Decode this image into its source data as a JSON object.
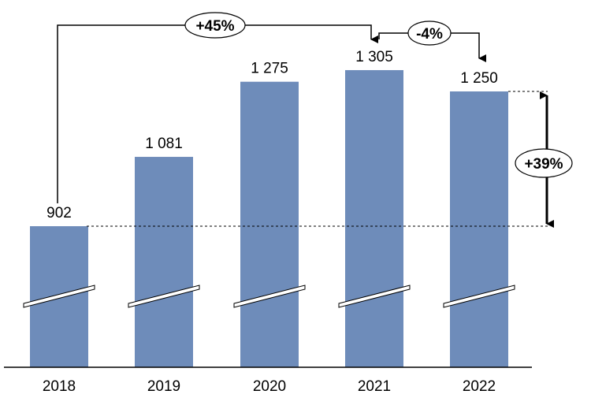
{
  "chart_data": {
    "type": "bar",
    "categories": [
      "2018",
      "2019",
      "2020",
      "2021",
      "2022"
    ],
    "values": [
      902,
      1081,
      1275,
      1305,
      1250
    ],
    "value_labels": [
      "902",
      "1 081",
      "1 275",
      "1 305",
      "1 250"
    ],
    "axis_break": true,
    "bar_color": "#6E8CBA",
    "grid": false,
    "legend": "none",
    "annotations": [
      {
        "label": "+45%",
        "from": "2018",
        "to": "2021"
      },
      {
        "label": "-4%",
        "from": "2021",
        "to": "2022"
      },
      {
        "label": "+39%",
        "from": "2018",
        "to": "2022",
        "kind": "vertical-difference"
      }
    ]
  }
}
